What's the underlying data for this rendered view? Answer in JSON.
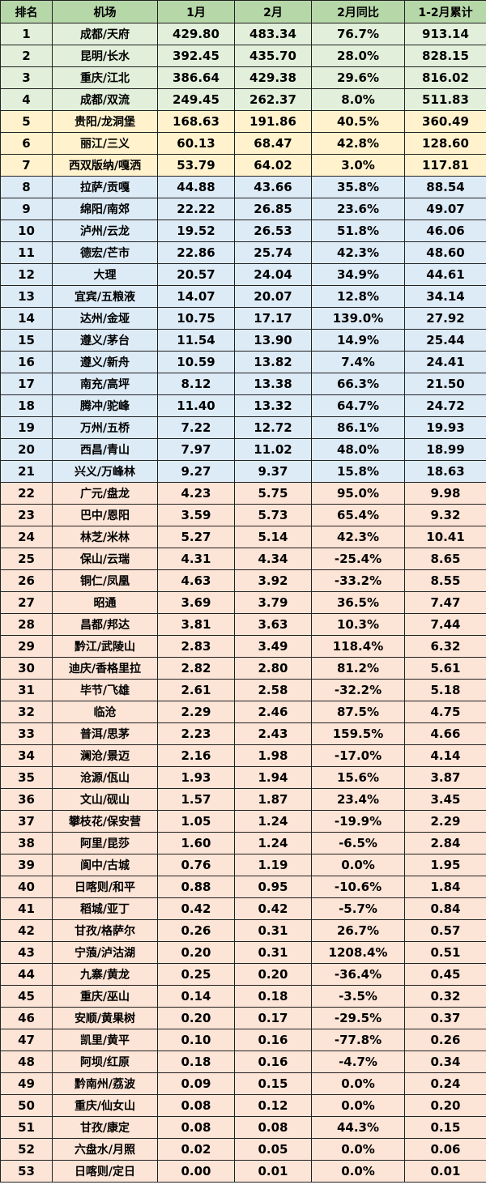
{
  "chart_data": {
    "type": "table",
    "columns": [
      "排名",
      "机场",
      "1月",
      "2月",
      "2月同比",
      "1-2月累计"
    ],
    "rows": [
      [
        "1",
        "成都/天府",
        "429.80",
        "483.34",
        "76.7%",
        "913.14"
      ],
      [
        "2",
        "昆明/长水",
        "392.45",
        "435.70",
        "28.0%",
        "828.15"
      ],
      [
        "3",
        "重庆/江北",
        "386.64",
        "429.38",
        "29.6%",
        "816.02"
      ],
      [
        "4",
        "成都/双流",
        "249.45",
        "262.37",
        "8.0%",
        "511.83"
      ],
      [
        "5",
        "贵阳/龙洞堡",
        "168.63",
        "191.86",
        "40.5%",
        "360.49"
      ],
      [
        "6",
        "丽江/三义",
        "60.13",
        "68.47",
        "42.8%",
        "128.60"
      ],
      [
        "7",
        "西双版纳/嘎洒",
        "53.79",
        "64.02",
        "3.0%",
        "117.81"
      ],
      [
        "8",
        "拉萨/贡嘎",
        "44.88",
        "43.66",
        "35.8%",
        "88.54"
      ],
      [
        "9",
        "绵阳/南郊",
        "22.22",
        "26.85",
        "23.6%",
        "49.07"
      ],
      [
        "10",
        "泸州/云龙",
        "19.52",
        "26.53",
        "51.8%",
        "46.06"
      ],
      [
        "11",
        "德宏/芒市",
        "22.86",
        "25.74",
        "42.3%",
        "48.60"
      ],
      [
        "12",
        "大理",
        "20.57",
        "24.04",
        "34.9%",
        "44.61"
      ],
      [
        "13",
        "宜宾/五粮液",
        "14.07",
        "20.07",
        "12.8%",
        "34.14"
      ],
      [
        "14",
        "达州/金垭",
        "10.75",
        "17.17",
        "139.0%",
        "27.92"
      ],
      [
        "15",
        "遵义/茅台",
        "11.54",
        "13.90",
        "14.9%",
        "25.44"
      ],
      [
        "16",
        "遵义/新舟",
        "10.59",
        "13.82",
        "7.4%",
        "24.41"
      ],
      [
        "17",
        "南充/高坪",
        "8.12",
        "13.38",
        "66.3%",
        "21.50"
      ],
      [
        "18",
        "腾冲/驼峰",
        "11.40",
        "13.32",
        "64.7%",
        "24.72"
      ],
      [
        "19",
        "万州/五桥",
        "7.22",
        "12.72",
        "86.1%",
        "19.93"
      ],
      [
        "20",
        "西昌/青山",
        "7.97",
        "11.02",
        "48.0%",
        "18.99"
      ],
      [
        "21",
        "兴义/万峰林",
        "9.27",
        "9.37",
        "15.8%",
        "18.63"
      ],
      [
        "22",
        "广元/盘龙",
        "4.23",
        "5.75",
        "95.0%",
        "9.98"
      ],
      [
        "23",
        "巴中/恩阳",
        "3.59",
        "5.73",
        "65.4%",
        "9.32"
      ],
      [
        "24",
        "林芝/米林",
        "5.27",
        "5.14",
        "42.3%",
        "10.41"
      ],
      [
        "25",
        "保山/云瑞",
        "4.31",
        "4.34",
        "-25.4%",
        "8.65"
      ],
      [
        "26",
        "铜仁/凤凰",
        "4.63",
        "3.92",
        "-33.2%",
        "8.55"
      ],
      [
        "27",
        "昭通",
        "3.69",
        "3.79",
        "36.5%",
        "7.47"
      ],
      [
        "28",
        "昌都/邦达",
        "3.81",
        "3.63",
        "10.3%",
        "7.44"
      ],
      [
        "29",
        "黔江/武陵山",
        "2.83",
        "3.49",
        "118.4%",
        "6.32"
      ],
      [
        "30",
        "迪庆/香格里拉",
        "2.82",
        "2.80",
        "81.2%",
        "5.61"
      ],
      [
        "31",
        "毕节/飞雄",
        "2.61",
        "2.58",
        "-32.2%",
        "5.18"
      ],
      [
        "32",
        "临沧",
        "2.29",
        "2.46",
        "87.5%",
        "4.75"
      ],
      [
        "33",
        "普洱/思茅",
        "2.23",
        "2.43",
        "159.5%",
        "4.66"
      ],
      [
        "34",
        "澜沧/景迈",
        "2.16",
        "1.98",
        "-17.0%",
        "4.14"
      ],
      [
        "35",
        "沧源/佤山",
        "1.93",
        "1.94",
        "15.6%",
        "3.87"
      ],
      [
        "36",
        "文山/砚山",
        "1.57",
        "1.87",
        "23.4%",
        "3.45"
      ],
      [
        "37",
        "攀枝花/保安营",
        "1.05",
        "1.24",
        "-19.9%",
        "2.29"
      ],
      [
        "38",
        "阿里/昆莎",
        "1.60",
        "1.24",
        "-6.5%",
        "2.84"
      ],
      [
        "39",
        "阆中/古城",
        "0.76",
        "1.19",
        "0.0%",
        "1.95"
      ],
      [
        "40",
        "日喀则/和平",
        "0.88",
        "0.95",
        "-10.6%",
        "1.84"
      ],
      [
        "41",
        "稻城/亚丁",
        "0.42",
        "0.42",
        "-5.7%",
        "0.84"
      ],
      [
        "42",
        "甘孜/格萨尔",
        "0.26",
        "0.31",
        "26.7%",
        "0.57"
      ],
      [
        "43",
        "宁蒗/泸沽湖",
        "0.20",
        "0.31",
        "1208.4%",
        "0.51"
      ],
      [
        "44",
        "九寨/黄龙",
        "0.25",
        "0.20",
        "-36.4%",
        "0.45"
      ],
      [
        "45",
        "重庆/巫山",
        "0.14",
        "0.18",
        "-3.5%",
        "0.32"
      ],
      [
        "46",
        "安顺/黄果树",
        "0.20",
        "0.17",
        "-29.5%",
        "0.37"
      ],
      [
        "47",
        "凯里/黄平",
        "0.10",
        "0.16",
        "-77.8%",
        "0.26"
      ],
      [
        "48",
        "阿坝/红原",
        "0.18",
        "0.16",
        "-4.7%",
        "0.34"
      ],
      [
        "49",
        "黔南州/荔波",
        "0.09",
        "0.15",
        "0.0%",
        "0.24"
      ],
      [
        "50",
        "重庆/仙女山",
        "0.08",
        "0.12",
        "0.0%",
        "0.20"
      ],
      [
        "51",
        "甘孜/康定",
        "0.08",
        "0.08",
        "44.3%",
        "0.15"
      ],
      [
        "52",
        "六盘水/月照",
        "0.02",
        "0.05",
        "0.0%",
        "0.06"
      ],
      [
        "53",
        "日喀则/定日",
        "0.00",
        "0.01",
        "0.0%",
        "0.01"
      ]
    ]
  },
  "colors": {
    "header": "#b6d7a8",
    "tier_1_to_4": "#e2efda",
    "tier_5_to_7": "#fff2cc",
    "tier_8_to_21": "#ddebf7",
    "tier_22_to_53": "#fce4d6"
  }
}
